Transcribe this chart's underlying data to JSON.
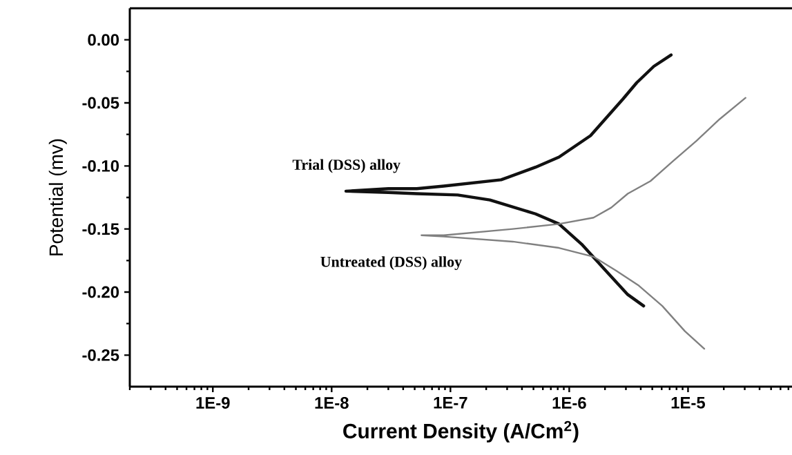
{
  "chart_data": {
    "type": "line",
    "xlabel": "Current Density (A/Cm$^{2}$)",
    "ylabel": "Potential (mv)",
    "log": "x",
    "xlim": [
      2e-10,
      7.5e-05
    ],
    "ylim": [
      -0.275,
      0.025
    ],
    "xticks": [
      {
        "value": 1e-09,
        "label": "1E-9"
      },
      {
        "value": 1e-08,
        "label": "1E-8"
      },
      {
        "value": 1e-07,
        "label": "1E-7"
      },
      {
        "value": 1e-06,
        "label": "1E-6"
      },
      {
        "value": 1e-05,
        "label": "1E-5"
      }
    ],
    "yticks": [
      {
        "value": 0,
        "label": "0.00"
      },
      {
        "value": -0.05,
        "label": "-0.05"
      },
      {
        "value": -0.1,
        "label": "-0.10"
      },
      {
        "value": -0.15,
        "label": "-0.15"
      },
      {
        "value": -0.2,
        "label": "-0.20"
      },
      {
        "value": -0.25,
        "label": "-0.25"
      }
    ],
    "series": [
      {
        "name": "Trial (DSS) alloy",
        "color": "#111111",
        "x": [
          4.23e-06,
          3.11e-06,
          1.98e-06,
          1.27e-06,
          8.2e-07,
          5.2e-07,
          2.15e-07,
          1.15e-07,
          5.2e-08,
          3e-08,
          1.32e-08,
          3e-08,
          5.2e-08,
          8.8e-08,
          2.67e-07,
          5.2e-07,
          8.2e-07,
          1.51e-06,
          2.83e-06,
          3.7e-06,
          5.16e-06,
          7.2e-06
        ],
        "values": [
          -0.211,
          -0.202,
          -0.182,
          -0.162,
          -0.146,
          -0.138,
          -0.127,
          -0.123,
          -0.122,
          -0.121,
          -0.12,
          -0.118,
          -0.118,
          -0.116,
          -0.111,
          -0.101,
          -0.093,
          -0.076,
          -0.047,
          -0.034,
          -0.021,
          -0.012
        ]
      },
      {
        "name": "Untreated (DSS) alloy",
        "color": "#808080",
        "x": [
          1.37e-05,
          9.4e-06,
          6.07e-06,
          3.86e-06,
          2.48e-06,
          1.6e-06,
          8.2e-07,
          3.35e-07,
          8.8e-08,
          5.7e-08,
          8.8e-08,
          3.35e-07,
          8.2e-07,
          1.6e-06,
          2.26e-06,
          3.11e-06,
          4.83e-06,
          7.5e-06,
          1.18e-05,
          1.84e-05,
          3.05e-05
        ],
        "values": [
          -0.245,
          -0.231,
          -0.211,
          -0.195,
          -0.183,
          -0.172,
          -0.165,
          -0.16,
          -0.156,
          -0.155,
          -0.155,
          -0.15,
          -0.146,
          -0.141,
          -0.133,
          -0.122,
          -0.112,
          -0.096,
          -0.08,
          -0.063,
          -0.046
        ]
      }
    ]
  }
}
